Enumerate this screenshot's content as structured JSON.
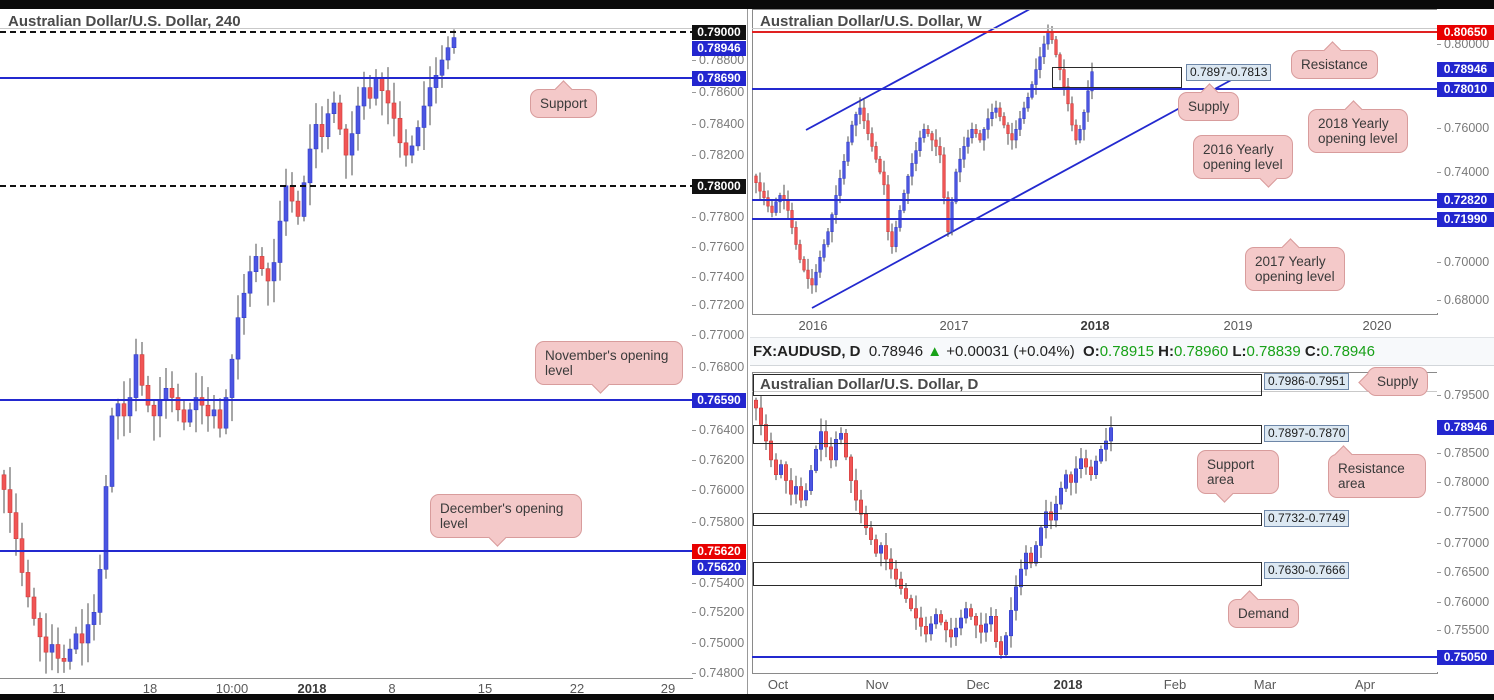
{
  "chart_data": [
    {
      "id": "c240",
      "type": "candlestick",
      "title": "Australian Dollar/U.S. Dollar, 240",
      "symbol": "AUD/USD",
      "timeframe": "240",
      "x_tick_labels": [
        "11",
        "18",
        "10:00",
        "2018",
        "8",
        "15",
        "22",
        "29"
      ],
      "y_range": [
        0.748,
        0.792
      ],
      "last_price": 0.78946,
      "levels": [
        {
          "price": 0.79,
          "style": "dashed",
          "color": "black"
        },
        {
          "price": 0.7869,
          "style": "solid",
          "color": "blue",
          "note": "Support"
        },
        {
          "price": 0.78,
          "style": "dashed",
          "color": "black"
        },
        {
          "price": 0.7659,
          "style": "solid",
          "color": "blue",
          "note": "November's opening level"
        },
        {
          "price": 0.7562,
          "style": "solid",
          "color": "blue",
          "note": "December's opening level"
        }
      ],
      "closes": [
        0.76,
        0.7585,
        0.7568,
        0.7546,
        0.753,
        0.7516,
        0.7504,
        0.7494,
        0.7499,
        0.749,
        0.7488,
        0.7496,
        0.7506,
        0.75,
        0.7512,
        0.752,
        0.7548,
        0.7602,
        0.7648,
        0.7656,
        0.7648,
        0.766,
        0.7688,
        0.7668,
        0.7655,
        0.7648,
        0.7658,
        0.7666,
        0.766,
        0.7652,
        0.7644,
        0.7652,
        0.766,
        0.7655,
        0.7648,
        0.7652,
        0.764,
        0.766,
        0.7685,
        0.7712,
        0.7728,
        0.7742,
        0.7752,
        0.7744,
        0.7736,
        0.7748,
        0.7775,
        0.7798,
        0.7788,
        0.7778,
        0.78,
        0.7822,
        0.7838,
        0.783,
        0.7845,
        0.7852,
        0.7835,
        0.7818,
        0.7832,
        0.785,
        0.7862,
        0.7855,
        0.7868,
        0.786,
        0.7852,
        0.7842,
        0.7826,
        0.7818,
        0.7824,
        0.7836,
        0.785,
        0.7862,
        0.787,
        0.788,
        0.7888,
        0.78946
      ]
    },
    {
      "id": "cw",
      "type": "candlestick",
      "title": "Australian Dollar/U.S. Dollar, W",
      "symbol": "AUD/USD",
      "timeframe": "W",
      "x_tick_labels": [
        "2016",
        "2017",
        "2018",
        "2019",
        "2020"
      ],
      "y_range": [
        0.68,
        0.81
      ],
      "last_price": 0.78946,
      "levels": [
        {
          "price": 0.8065,
          "style": "solid",
          "color": "red",
          "note": "Resistance"
        },
        {
          "price": 0.7801,
          "style": "solid",
          "color": "blue",
          "note": "2018 Yearly opening level"
        },
        {
          "price": 0.7282,
          "style": "solid",
          "color": "blue",
          "note": "2016 Yearly opening level"
        },
        {
          "price": 0.7199,
          "style": "solid",
          "color": "blue",
          "note": "2017 Yearly opening level"
        }
      ],
      "zones": [
        {
          "range": "0.7897-0.7813",
          "note": "Supply"
        }
      ],
      "trend_channel": true,
      "closes": [
        0.735,
        0.731,
        0.728,
        0.724,
        0.721,
        0.726,
        0.729,
        0.727,
        0.722,
        0.714,
        0.706,
        0.699,
        0.694,
        0.69,
        0.687,
        0.693,
        0.7,
        0.706,
        0.712,
        0.72,
        0.729,
        0.737,
        0.745,
        0.754,
        0.762,
        0.767,
        0.77,
        0.764,
        0.758,
        0.752,
        0.746,
        0.74,
        0.734,
        0.712,
        0.705,
        0.714,
        0.722,
        0.73,
        0.738,
        0.744,
        0.75,
        0.756,
        0.76,
        0.758,
        0.755,
        0.752,
        0.748,
        0.728,
        0.712,
        0.726,
        0.74,
        0.746,
        0.752,
        0.756,
        0.76,
        0.758,
        0.755,
        0.76,
        0.765,
        0.768,
        0.77,
        0.766,
        0.762,
        0.758,
        0.755,
        0.76,
        0.765,
        0.77,
        0.775,
        0.781,
        0.788,
        0.794,
        0.8,
        0.806,
        0.802,
        0.795,
        0.788,
        0.78,
        0.772,
        0.762,
        0.755,
        0.76,
        0.768,
        0.778,
        0.787
      ]
    },
    {
      "id": "cd",
      "type": "candlestick",
      "title": "Australian Dollar/U.S. Dollar, D",
      "symbol": "AUD/USD",
      "timeframe": "D",
      "x_tick_labels": [
        "Oct",
        "Nov",
        "Dec",
        "2018",
        "Feb",
        "Mar",
        "Apr"
      ],
      "y_range": [
        0.748,
        0.8
      ],
      "last_price": 0.78946,
      "ohlc": {
        "open": "0.78915",
        "high": "0.78960",
        "low": "0.78839",
        "close": "0.78946"
      },
      "change": "+0.00031 (+0.04%)",
      "levels": [
        {
          "price": 0.7505,
          "style": "solid",
          "color": "blue"
        }
      ],
      "zones": [
        {
          "range": "0.7986-0.7951",
          "note": "Supply"
        },
        {
          "range": "0.7897-0.7870",
          "note": "Resistance area"
        },
        {
          "range": "0.7732-0.7749",
          "note": "Support area"
        },
        {
          "range": "0.7630-0.7666",
          "note": "Demand"
        }
      ],
      "closes": [
        0.7928,
        0.79,
        0.7872,
        0.784,
        0.7815,
        0.7832,
        0.7805,
        0.7782,
        0.7795,
        0.7772,
        0.7788,
        0.7822,
        0.7858,
        0.7888,
        0.7862,
        0.784,
        0.7875,
        0.7885,
        0.7845,
        0.7805,
        0.7772,
        0.7748,
        0.7725,
        0.7705,
        0.7682,
        0.7695,
        0.7672,
        0.7655,
        0.7638,
        0.7622,
        0.7605,
        0.7588,
        0.7572,
        0.7558,
        0.7545,
        0.7562,
        0.7578,
        0.7565,
        0.7552,
        0.754,
        0.7555,
        0.7572,
        0.7588,
        0.7575,
        0.756,
        0.7548,
        0.7562,
        0.7575,
        0.7532,
        0.751,
        0.7542,
        0.7585,
        0.7625,
        0.7655,
        0.7682,
        0.7665,
        0.7695,
        0.7725,
        0.7752,
        0.7738,
        0.7765,
        0.7792,
        0.7815,
        0.7802,
        0.7825,
        0.7842,
        0.7828,
        0.7815,
        0.7838,
        0.7858,
        0.7872,
        0.78946
      ]
    }
  ],
  "ui": {
    "callouts": {
      "support": "Support",
      "november": "November's opening level",
      "december": "December's opening level",
      "resistance_w": "Resistance",
      "supply_w": "Supply",
      "y2018": "2018 Yearly opening level",
      "y2016": "2016 Yearly opening level",
      "y2017": "2017 Yearly opening level",
      "supply_d": "Supply",
      "support_area": "Support area",
      "resistance_area": "Resistance area",
      "demand": "Demand"
    },
    "zone_labels": {
      "w0": "0.7897-0.7813",
      "d0": "0.7986-0.7951",
      "d1": "0.7897-0.7870",
      "d2": "0.7732-0.7749",
      "d3": "0.7630-0.7666"
    },
    "axes": [
      {
        "el": "axis-240",
        "ticks": [
          [
            "0.78800",
            51
          ],
          [
            "0.78600",
            83
          ],
          [
            "0.78400",
            115
          ],
          [
            "0.78200",
            146
          ],
          [
            "0.77800",
            208
          ],
          [
            "0.77600",
            238
          ],
          [
            "0.77400",
            268
          ],
          [
            "0.77200",
            296
          ],
          [
            "0.77000",
            326
          ],
          [
            "0.76800",
            358
          ],
          [
            "0.76400",
            421
          ],
          [
            "0.76200",
            451
          ],
          [
            "0.76000",
            481
          ],
          [
            "0.75800",
            513
          ],
          [
            "0.75400",
            574
          ],
          [
            "0.75200",
            603
          ],
          [
            "0.75000",
            634
          ],
          [
            "0.74800",
            664
          ]
        ],
        "badges": [
          [
            "0.79000",
            23,
            "k"
          ],
          [
            "0.78946",
            39,
            "b"
          ],
          [
            "0.78690",
            69,
            "b"
          ],
          [
            "0.78000",
            177,
            "k"
          ],
          [
            "0.76590",
            391,
            "b"
          ],
          [
            "0.75620",
            542,
            "r"
          ],
          [
            "0.75620",
            558,
            "b"
          ]
        ]
      },
      {
        "el": "axis-w",
        "ticks": [
          [
            "0.80000",
            35
          ],
          [
            "0.76000",
            119
          ],
          [
            "0.74000",
            163
          ],
          [
            "0.70000",
            253
          ],
          [
            "0.68000",
            291
          ]
        ],
        "badges": [
          [
            "0.80650",
            23,
            "r"
          ],
          [
            "0.78946",
            60,
            "b"
          ],
          [
            "0.78010",
            80,
            "b"
          ],
          [
            "0.72820",
            191,
            "b"
          ],
          [
            "0.71990",
            210,
            "b"
          ]
        ]
      },
      {
        "el": "axis-d",
        "ticks": [
          [
            "0.79500",
            23
          ],
          [
            "0.78500",
            81
          ],
          [
            "0.78000",
            110
          ],
          [
            "0.77500",
            140
          ],
          [
            "0.77000",
            171
          ],
          [
            "0.76500",
            200
          ],
          [
            "0.76000",
            230
          ],
          [
            "0.75500",
            258
          ]
        ],
        "badges": [
          [
            "0.78946",
            55,
            "b"
          ],
          [
            "0.75050",
            285,
            "b"
          ]
        ]
      }
    ],
    "xaxes": [
      {
        "el": "xl-240",
        "labels": [
          [
            "11",
            59,
            0
          ],
          [
            "18",
            150,
            0
          ],
          [
            "10:00",
            232,
            0
          ],
          [
            "2018",
            312,
            1
          ],
          [
            "8",
            392,
            0
          ],
          [
            "15",
            485,
            0
          ],
          [
            "22",
            577,
            0
          ],
          [
            "29",
            668,
            0
          ]
        ]
      },
      {
        "el": "xl-w",
        "labels": [
          [
            "2016",
            61,
            0
          ],
          [
            "2017",
            202,
            0
          ],
          [
            "2018",
            343,
            1
          ],
          [
            "2019",
            486,
            0
          ],
          [
            "2020",
            625,
            0
          ]
        ]
      },
      {
        "el": "xl-d",
        "labels": [
          [
            "Oct",
            26,
            0
          ],
          [
            "Nov",
            125,
            0
          ],
          [
            "Dec",
            226,
            0
          ],
          [
            "2018",
            316,
            1
          ],
          [
            "Feb",
            423,
            0
          ],
          [
            "Mar",
            513,
            0
          ],
          [
            "Apr",
            613,
            0
          ]
        ]
      }
    ],
    "status": {
      "segments": [
        {
          "t": "FX:AUDUSD, D",
          "b": 1,
          "c": "#222"
        },
        {
          "t": "  0.78946 ",
          "b": 0,
          "c": "#222"
        },
        {
          "t": "▲",
          "b": 0,
          "c": "#18a118"
        },
        {
          "t": " +0.00031 (+0.04%)  ",
          "b": 0,
          "c": "#222"
        },
        {
          "t": "O:",
          "b": 1,
          "c": "#222"
        },
        {
          "t": "0.78915",
          "b": 0,
          "c": "#18a118"
        },
        {
          "t": " H:",
          "b": 1,
          "c": "#222"
        },
        {
          "t": "0.78960",
          "b": 0,
          "c": "#18a118"
        },
        {
          "t": " L:",
          "b": 1,
          "c": "#222"
        },
        {
          "t": "0.78839",
          "b": 0,
          "c": "#18a118"
        },
        {
          "t": " C:",
          "b": 1,
          "c": "#222"
        },
        {
          "t": "0.78946",
          "b": 0,
          "c": "#18a118"
        }
      ]
    }
  }
}
